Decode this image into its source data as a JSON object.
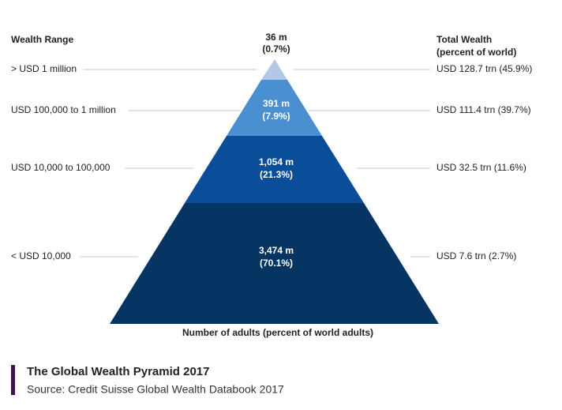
{
  "header": {
    "left": "Wealth Range",
    "right": [
      "Total Wealth",
      "(percent of  world)"
    ]
  },
  "tiers": [
    {
      "range": "> USD 1 million",
      "adults": "36 m",
      "share": "(0.7%)",
      "wealth": "USD 128.7 trn (45.9%)"
    },
    {
      "range": "USD 100,000  to 1 million",
      "adults": "391 m",
      "share": "(7.9%)",
      "wealth": "USD 111.4 trn (39.7%)"
    },
    {
      "range": "USD 10,000  to 100,000",
      "adults": "1,054 m",
      "share": "(21.3%)",
      "wealth": "USD 32.5 trn (11.6%)"
    },
    {
      "range": "< USD 10,000",
      "adults": "3,474 m",
      "share": "(70.1%)",
      "wealth": "USD 7.6 trn (2.7%)"
    }
  ],
  "axis_label": "Number of adults (percent of world adults)",
  "caption": {
    "title": "The Global Wealth Pyramid 2017",
    "source": "Source: Credit Suisse Global Wealth Databook 2017"
  }
}
